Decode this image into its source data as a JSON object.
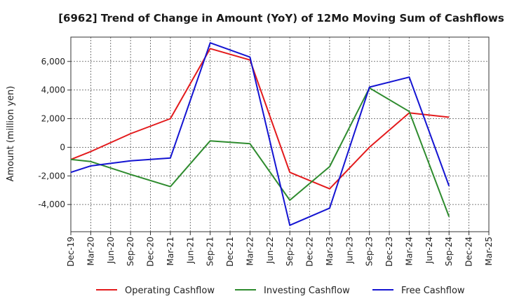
{
  "chart_data": {
    "type": "line",
    "title": "[6962]  Trend of Change in Amount (YoY) of 12Mo Moving Sum of Cashflows",
    "xlabel": "",
    "ylabel": "Amount (million yen)",
    "categories": [
      "Dec-19",
      "Mar-20",
      "Jun-20",
      "Sep-20",
      "Dec-20",
      "Mar-21",
      "Jun-21",
      "Sep-21",
      "Dec-21",
      "Mar-22",
      "Jun-22",
      "Sep-22",
      "Dec-22",
      "Mar-23",
      "Jun-23",
      "Sep-23",
      "Dec-23",
      "Mar-24",
      "Jun-24",
      "Sep-24",
      "Dec-24",
      "Mar-25"
    ],
    "ylim": [
      -5900,
      7700
    ],
    "yticks": [
      -4000,
      -2000,
      0,
      2000,
      4000,
      6000
    ],
    "ytick_labels": [
      "-4,000",
      "-2,000",
      "0",
      "2,000",
      "4,000",
      "6,000"
    ],
    "grid": true,
    "legend_position": "bottom",
    "series": [
      {
        "name": "Operating Cashflow",
        "color": "#e31a1c",
        "values": [
          -850,
          -300,
          null,
          950,
          null,
          2000,
          null,
          6900,
          null,
          6100,
          null,
          -1750,
          null,
          -2900,
          null,
          0,
          null,
          2400,
          null,
          2100,
          null,
          null
        ]
      },
      {
        "name": "Investing Cashflow",
        "color": "#2e8b2e",
        "values": [
          -850,
          -1000,
          null,
          -1900,
          null,
          -2750,
          null,
          450,
          null,
          250,
          null,
          -3700,
          null,
          -1350,
          null,
          4150,
          null,
          2500,
          null,
          -4850,
          null,
          null
        ]
      },
      {
        "name": "Free Cashflow",
        "color": "#1414d2",
        "values": [
          -1750,
          -1300,
          null,
          -950,
          null,
          -750,
          null,
          7300,
          null,
          6300,
          null,
          -5450,
          null,
          -4250,
          null,
          4200,
          null,
          4900,
          null,
          -2700,
          null,
          null
        ]
      }
    ]
  }
}
